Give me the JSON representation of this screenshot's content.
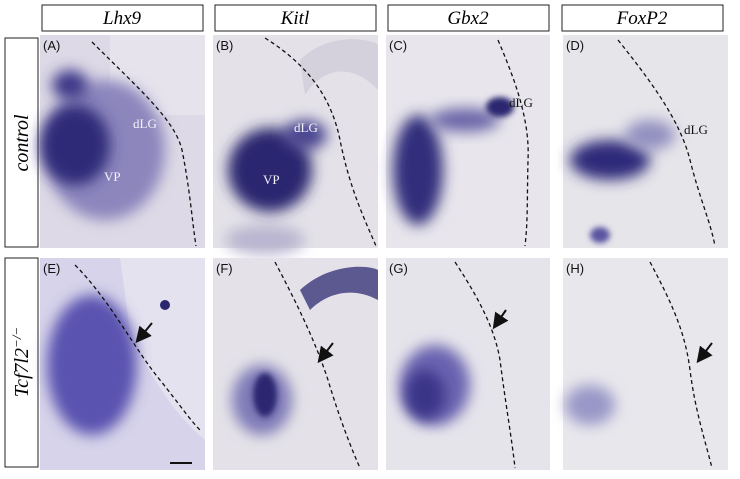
{
  "columns": [
    "Lhx9",
    "Kitl",
    "Gbx2",
    "FoxP2"
  ],
  "rows": [
    {
      "label": "control"
    },
    {
      "label": "Tcf7l2",
      "superscript": "−/−"
    }
  ],
  "panels": [
    {
      "letter": "(A)",
      "labels": [
        "dLG",
        "VP"
      ]
    },
    {
      "letter": "(B)",
      "labels": [
        "dLG",
        "VP"
      ]
    },
    {
      "letter": "(C)",
      "labels": [
        "dLG"
      ]
    },
    {
      "letter": "(D)",
      "labels": [
        "dLG"
      ]
    },
    {
      "letter": "(E)"
    },
    {
      "letter": "(F)"
    },
    {
      "letter": "(G)"
    },
    {
      "letter": "(H)"
    }
  ]
}
